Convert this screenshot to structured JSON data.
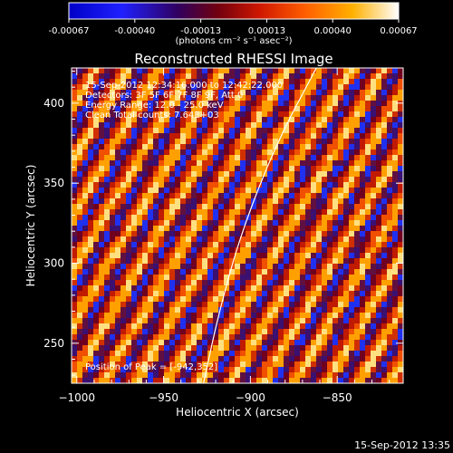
{
  "chart_data": {
    "type": "heatmap",
    "title": "Reconstructed RHESSI Image",
    "xlabel": "Heliocentric X (arcsec)",
    "ylabel": "Heliocentric Y (arcsec)",
    "xlim": [
      -1003,
      -812
    ],
    "ylim": [
      225,
      422
    ],
    "x_ticks": [
      -1000,
      -950,
      -900,
      -850
    ],
    "y_ticks": [
      250,
      300,
      350,
      400
    ],
    "colorbar": {
      "ticks": [
        "-0.00067",
        "-0.00040",
        "-0.00013",
        "0.00013",
        "0.00040",
        "0.00067"
      ],
      "label": "(photons cm⁻² s⁻¹ asec⁻²)",
      "range": [
        -0.00067,
        0.00067
      ]
    },
    "annotations": [
      "15-Sep-2012 12:34:16.000 to 12:42:22.000",
      "Detectors: 3F 5F 6F 7F 8F 9F, Att 0",
      "Energy Range: 12.0 - 25.0 keV",
      "Clean     Total counts: 7.64E+03"
    ],
    "peak_text": "Position of Peak = [-942,352]",
    "limb_curve": [
      [
        -927,
        225
      ],
      [
        -918,
        270
      ],
      [
        -905,
        320
      ],
      [
        -885,
        375
      ],
      [
        -862,
        422
      ]
    ],
    "stripe_period_px": 30,
    "grid": false
  },
  "timestamp": "15-Sep-2012 13:35",
  "colors": {
    "background": "#000000",
    "foreground": "#ffffff"
  }
}
